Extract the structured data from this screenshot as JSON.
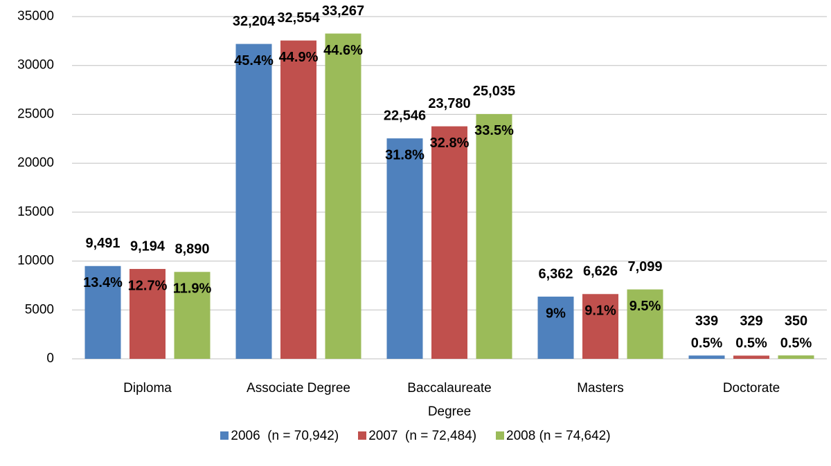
{
  "chart_data": {
    "type": "bar",
    "categories": [
      "Diploma",
      "Associate Degree",
      "Baccalaureate Degree",
      "Masters",
      "Doctorate"
    ],
    "series": [
      {
        "name": "2006  (n = 70,942)",
        "color": "#4f81bd",
        "values": [
          9491,
          32204,
          22546,
          6362,
          339
        ],
        "value_labels": [
          "9,491",
          "32,204",
          "22,546",
          "6,362",
          "339"
        ],
        "share_labels": [
          "13.4%",
          "45.4%",
          "31.8%",
          "9%",
          "0.5%"
        ]
      },
      {
        "name": "2007  (n = 72,484)",
        "color": "#c0504d",
        "values": [
          9194,
          32554,
          23780,
          6626,
          329
        ],
        "value_labels": [
          "9,194",
          "32,554",
          "23,780",
          "6,626",
          "329"
        ],
        "share_labels": [
          "12.7%",
          "44.9%",
          "32.8%",
          "9.1%",
          "0.5%"
        ]
      },
      {
        "name": "2008 (n = 74,642)",
        "color": "#9bbb59",
        "values": [
          8890,
          33267,
          25035,
          7099,
          350
        ],
        "value_labels": [
          "8,890",
          "33,267",
          "25,035",
          "7,099",
          "350"
        ],
        "share_labels": [
          "11.9%",
          "44.6%",
          "33.5%",
          "9.5%",
          "0.5%"
        ]
      }
    ],
    "ylim": [
      0,
      35000
    ],
    "yticks": [
      0,
      5000,
      10000,
      15000,
      20000,
      25000,
      30000,
      35000
    ],
    "grid": true,
    "legend": "bottom"
  }
}
